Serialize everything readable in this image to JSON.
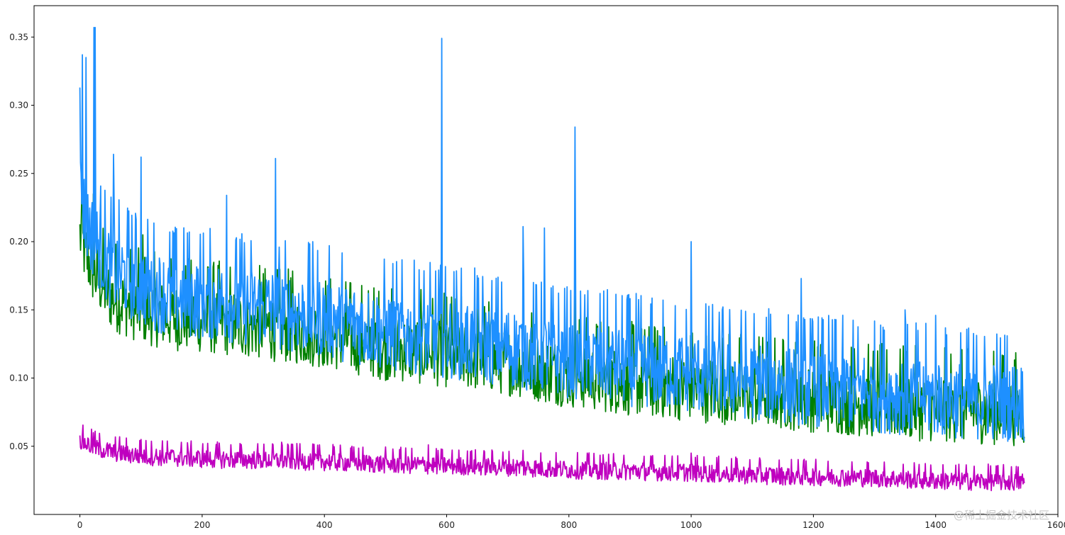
{
  "watermark": "@稀土掘金技术社区",
  "chart_data": {
    "type": "line",
    "title": "",
    "xlabel": "",
    "ylabel": "",
    "xlim": [
      -75,
      1600
    ],
    "ylim": [
      0.0,
      0.373
    ],
    "grid": false,
    "legend": "none",
    "x_ticks": [
      0,
      200,
      400,
      600,
      800,
      1000,
      1200,
      1400,
      1600
    ],
    "x_tick_labels": [
      "0",
      "200",
      "400",
      "600",
      "800",
      "1000",
      "1200",
      "1400",
      "1600"
    ],
    "y_ticks": [
      0.05,
      0.1,
      0.15,
      0.2,
      0.25,
      0.3,
      0.35
    ],
    "y_tick_labels": [
      "0.05",
      "0.10",
      "0.15",
      "0.20",
      "0.25",
      "0.30",
      "0.35"
    ],
    "series": [
      {
        "color": "#008000",
        "x": [
          0,
          10,
          25,
          50,
          75,
          100,
          150,
          200,
          300,
          400,
          500,
          600,
          700,
          800,
          900,
          1000,
          1100,
          1200,
          1300,
          1400,
          1545
        ],
        "y": [
          0.205,
          0.19,
          0.175,
          0.16,
          0.155,
          0.15,
          0.145,
          0.143,
          0.138,
          0.132,
          0.123,
          0.118,
          0.112,
          0.103,
          0.097,
          0.093,
          0.089,
          0.085,
          0.081,
          0.078,
          0.075
        ],
        "spikes": [
          [
            3,
            0.235
          ],
          [
            22,
            0.235
          ],
          [
            103,
            0.205
          ],
          [
            592,
            0.205
          ],
          [
            810,
            0.16
          ]
        ]
      },
      {
        "color": "#1e90ff",
        "x": [
          0,
          10,
          25,
          50,
          75,
          100,
          150,
          200,
          300,
          400,
          500,
          600,
          700,
          800,
          900,
          1000,
          1100,
          1200,
          1300,
          1400,
          1545
        ],
        "y": [
          0.24,
          0.215,
          0.2,
          0.18,
          0.175,
          0.168,
          0.16,
          0.158,
          0.152,
          0.145,
          0.135,
          0.13,
          0.123,
          0.115,
          0.109,
          0.104,
          0.099,
          0.094,
          0.09,
          0.086,
          0.083
        ],
        "spikes": [
          [
            0,
            0.313
          ],
          [
            4,
            0.337
          ],
          [
            10,
            0.335
          ],
          [
            23,
            0.357
          ],
          [
            25,
            0.357
          ],
          [
            55,
            0.264
          ],
          [
            100,
            0.262
          ],
          [
            240,
            0.234
          ],
          [
            320,
            0.261
          ],
          [
            592,
            0.349
          ],
          [
            725,
            0.211
          ],
          [
            760,
            0.21
          ],
          [
            810,
            0.284
          ],
          [
            1000,
            0.2
          ],
          [
            1180,
            0.173
          ],
          [
            1350,
            0.15
          ],
          [
            1400,
            0.146
          ]
        ]
      },
      {
        "color": "#bf00bf",
        "x": [
          0,
          25,
          50,
          100,
          200,
          300,
          400,
          500,
          600,
          700,
          800,
          900,
          1000,
          1100,
          1200,
          1300,
          1400,
          1545
        ],
        "y": [
          0.054,
          0.049,
          0.046,
          0.043,
          0.041,
          0.04,
          0.039,
          0.037,
          0.036,
          0.035,
          0.033,
          0.032,
          0.031,
          0.029,
          0.028,
          0.027,
          0.025,
          0.024
        ],
        "spikes": [
          [
            22,
            0.06
          ],
          [
            100,
            0.055
          ],
          [
            330,
            0.053
          ],
          [
            570,
            0.051
          ],
          [
            725,
            0.047
          ],
          [
            1000,
            0.045
          ]
        ]
      }
    ]
  }
}
